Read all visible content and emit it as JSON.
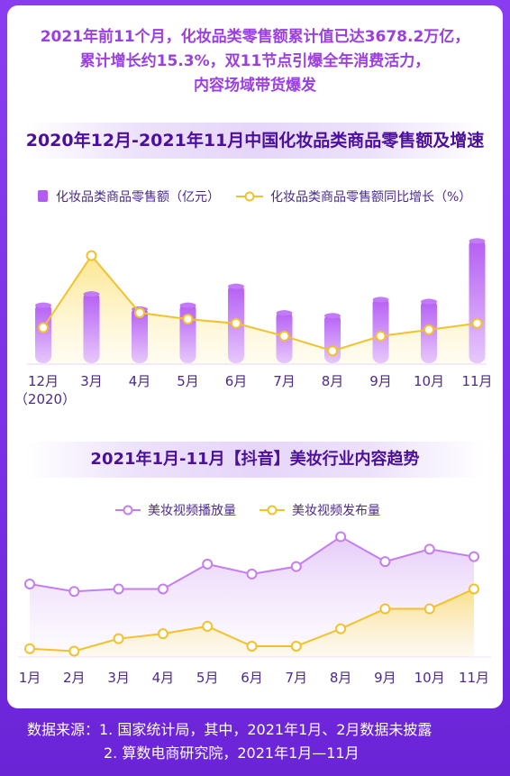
{
  "headline": {
    "line1": "2021年前11个月，化妆品类零售额累计值已达3678.2万亿，",
    "line2": "累计增长约15.3%，双11节点引爆全年消费活力，",
    "line3": "内容场域带货爆发"
  },
  "chart_data": [
    {
      "type": "bar+line",
      "title": "2020年12月-2021年11月中国化妆品类商品零售额及增速",
      "categories": [
        "12月",
        "3月",
        "4月",
        "5月",
        "6月",
        "7月",
        "8月",
        "9月",
        "10月",
        "11月"
      ],
      "category_sub": [
        "（2020）",
        "",
        "",
        "",
        "",
        "",
        "",
        "",
        "",
        ""
      ],
      "series": [
        {
          "name": "化妆品类商品零售额（亿元）",
          "kind": "bar",
          "values": [
            64,
            76,
            60,
            64,
            84,
            56,
            53,
            70,
            68,
            132
          ]
        },
        {
          "name": "化妆品类商品零售额同比增长（%）",
          "kind": "line",
          "values": [
            10,
            44,
            17,
            14,
            12,
            6,
            -1,
            6,
            9,
            12
          ]
        }
      ],
      "colors": {
        "bar": "#a84cf0",
        "line": "#f2c12e"
      },
      "grid": false,
      "legend": "top"
    },
    {
      "type": "line",
      "title": "2021年1月-11月【抖音】美妆行业内容趋势",
      "categories": [
        "1月",
        "2月",
        "3月",
        "4月",
        "5月",
        "6月",
        "7月",
        "8月",
        "9月",
        "10月",
        "11月"
      ],
      "series": [
        {
          "name": "美妆视频播放量",
          "values": [
            54,
            51,
            52,
            52,
            62,
            58,
            61,
            73,
            63,
            68,
            65
          ]
        },
        {
          "name": "美妆视频发布量",
          "values": [
            28,
            27,
            32,
            34,
            37,
            29,
            29,
            36,
            44,
            44,
            52
          ]
        }
      ],
      "colors": {
        "views": "#c47ef0",
        "posts": "#f2c12e"
      },
      "grid": false,
      "legend": "top"
    }
  ],
  "source": {
    "line1": "数据来源：1. 国家统计局，其中，2021年1月、2月数据未披露",
    "line2": "2. 算数电商研究院，2021年1月—11月"
  }
}
